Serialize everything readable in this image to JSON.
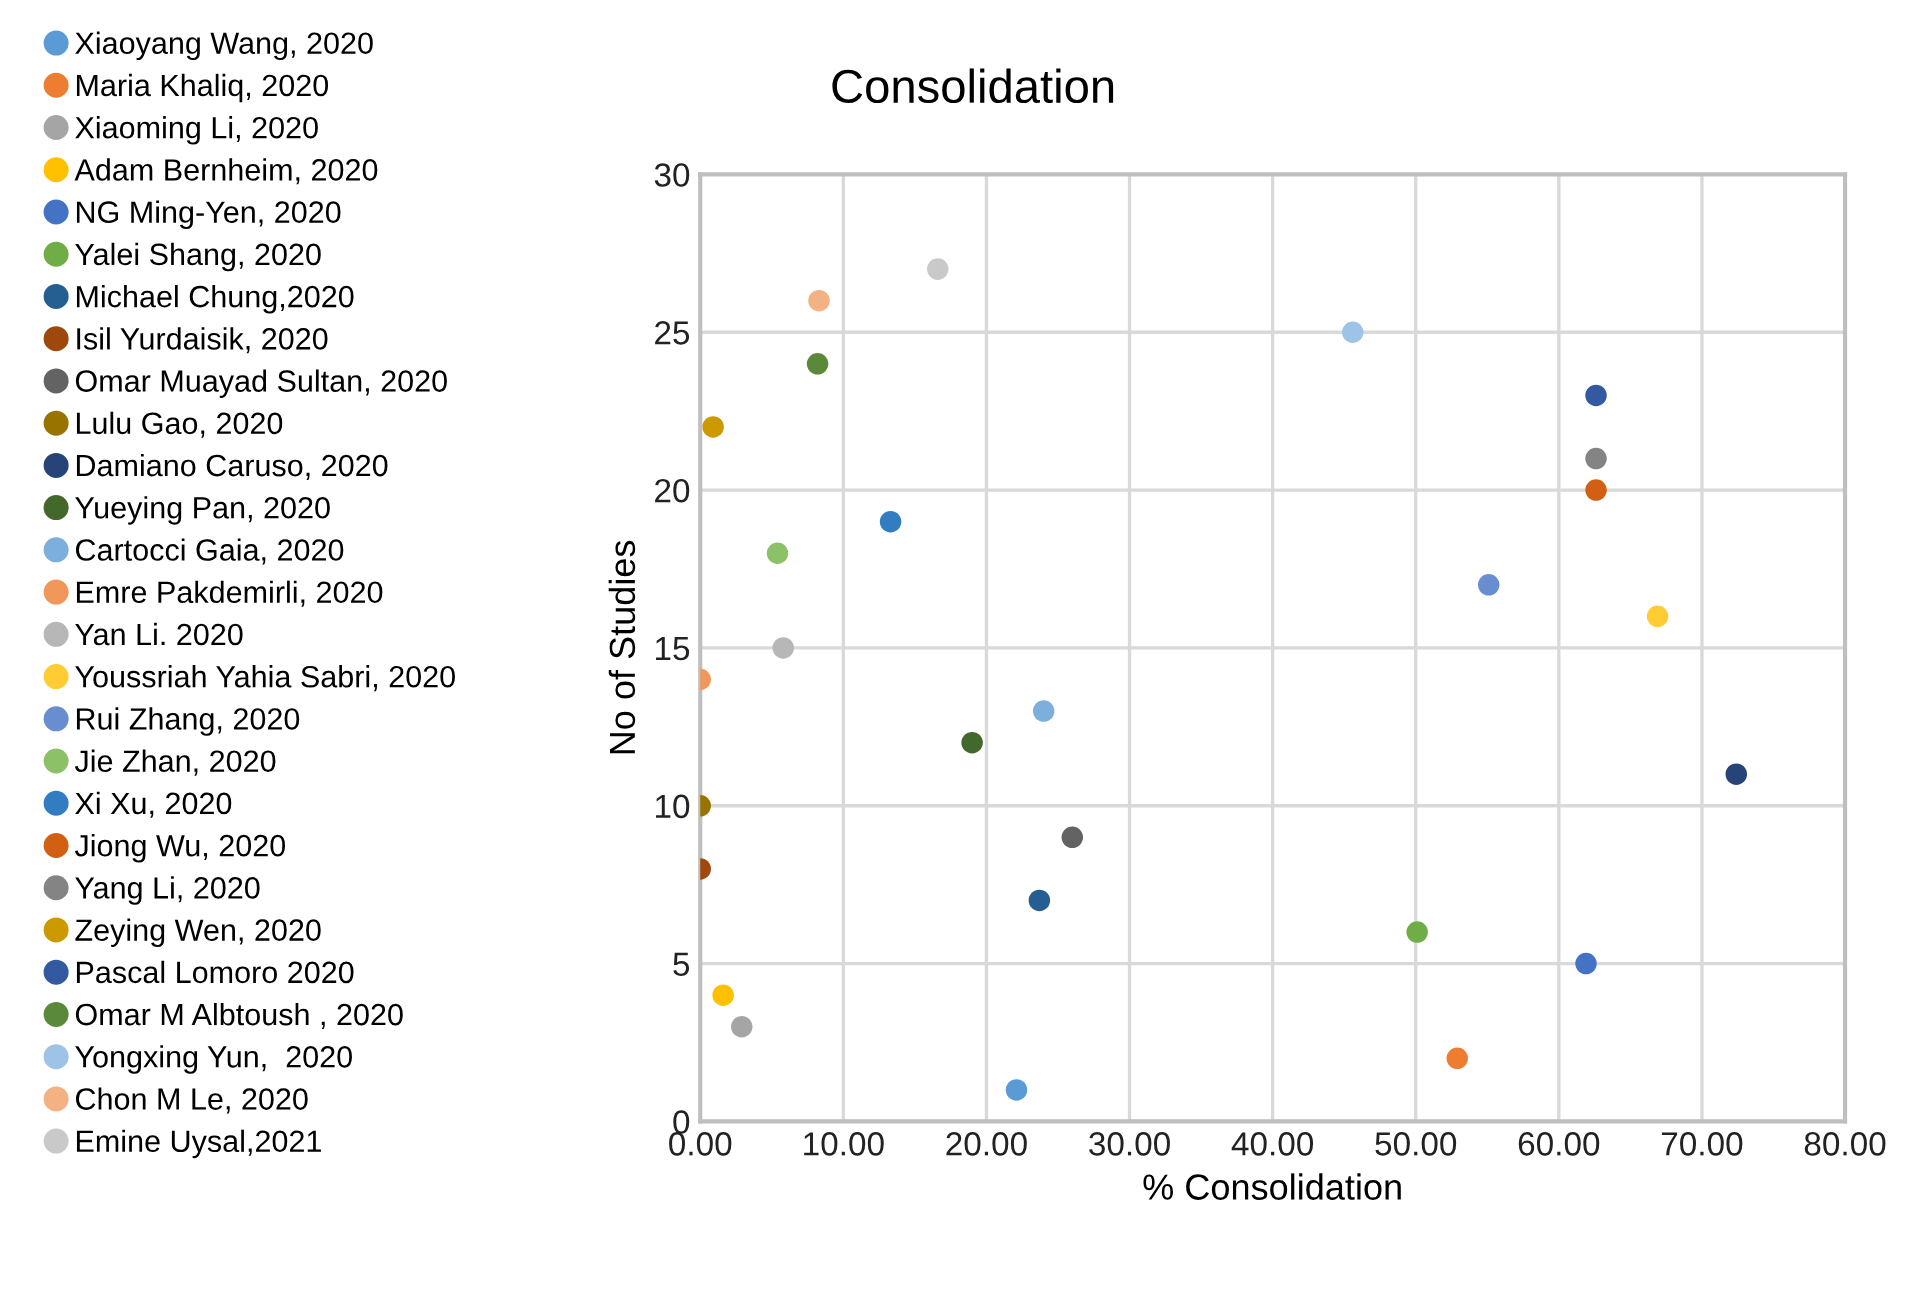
{
  "chart_data": {
    "type": "scatter",
    "title": "Consolidation",
    "xlabel": "% Consolidation",
    "ylabel": "No of Studies",
    "xlim": [
      0,
      80
    ],
    "ylim": [
      0,
      30
    ],
    "xticks": [
      {
        "value": 0,
        "label": "0.00"
      },
      {
        "value": 10,
        "label": "10.00"
      },
      {
        "value": 20,
        "label": "20.00"
      },
      {
        "value": 30,
        "label": "30.00"
      },
      {
        "value": 40,
        "label": "40.00"
      },
      {
        "value": 50,
        "label": "50.00"
      },
      {
        "value": 60,
        "label": "60.00"
      },
      {
        "value": 70,
        "label": "70.00"
      },
      {
        "value": 80,
        "label": "80.00"
      }
    ],
    "yticks": [
      0,
      5,
      10,
      15,
      20,
      25,
      30
    ],
    "grid": true,
    "legend": "left",
    "marker": "circle",
    "series": [
      {
        "name": "Xiaoyang Wang, 2020",
        "color": "#5b9bd5",
        "x": [
          22.1
        ],
        "values": [
          1
        ]
      },
      {
        "name": "Maria Khaliq, 2020",
        "color": "#ed7d31",
        "x": [
          52.9
        ],
        "values": [
          2
        ]
      },
      {
        "name": "Xiaoming Li, 2020",
        "color": "#a5a5a5",
        "x": [
          2.9
        ],
        "values": [
          3
        ]
      },
      {
        "name": "Adam Bernheim, 2020",
        "color": "#ffc000",
        "x": [
          1.6
        ],
        "values": [
          4
        ]
      },
      {
        "name": "NG Ming-Yen, 2020",
        "color": "#4472c4",
        "x": [
          61.9
        ],
        "values": [
          5
        ]
      },
      {
        "name": "Yalei Shang, 2020",
        "color": "#70ad47",
        "x": [
          50.1
        ],
        "values": [
          6
        ]
      },
      {
        "name": "Michael Chung,2020",
        "color": "#255e91",
        "x": [
          23.7
        ],
        "values": [
          7
        ]
      },
      {
        "name": "Isil Yurdaisik, 2020",
        "color": "#9e480e",
        "x": [
          0
        ],
        "values": [
          8
        ]
      },
      {
        "name": "Omar Muayad Sultan, 2020",
        "color": "#636363",
        "x": [
          26.0
        ],
        "values": [
          9
        ]
      },
      {
        "name": "Lulu Gao, 2020",
        "color": "#997300",
        "x": [
          0
        ],
        "values": [
          10
        ]
      },
      {
        "name": "Damiano Caruso, 2020",
        "color": "#264478",
        "x": [
          72.4
        ],
        "values": [
          11
        ]
      },
      {
        "name": "Yueying Pan, 2020",
        "color": "#43682b",
        "x": [
          19.0
        ],
        "values": [
          12
        ]
      },
      {
        "name": "Cartocci Gaia, 2020",
        "color": "#7cafdd",
        "x": [
          24.0
        ],
        "values": [
          13
        ]
      },
      {
        "name": "Emre Pakdemirli, 2020",
        "color": "#f1975a",
        "x": [
          0
        ],
        "values": [
          14
        ]
      },
      {
        "name": "Yan Li. 2020",
        "color": "#b7b7b7",
        "x": [
          5.8
        ],
        "values": [
          15
        ]
      },
      {
        "name": "Youssriah Yahia Sabri, 2020",
        "color": "#ffcd33",
        "x": [
          66.9
        ],
        "values": [
          16
        ]
      },
      {
        "name": "Rui Zhang, 2020",
        "color": "#698ed0",
        "x": [
          55.1
        ],
        "values": [
          17
        ]
      },
      {
        "name": "Jie Zhan, 2020",
        "color": "#8cc168",
        "x": [
          5.4
        ],
        "values": [
          18
        ]
      },
      {
        "name": "Xi Xu, 2020",
        "color": "#327dc2",
        "x": [
          13.3
        ],
        "values": [
          19
        ]
      },
      {
        "name": "Jiong Wu, 2020",
        "color": "#d26012",
        "x": [
          62.6
        ],
        "values": [
          20
        ]
      },
      {
        "name": "Yang Li, 2020",
        "color": "#848484",
        "x": [
          62.6
        ],
        "values": [
          21
        ]
      },
      {
        "name": "Zeying Wen, 2020",
        "color": "#cc9a00",
        "x": [
          0.9
        ],
        "values": [
          22
        ]
      },
      {
        "name": "Pascal Lomoro 2020",
        "color": "#335aa1",
        "x": [
          62.6
        ],
        "values": [
          23
        ]
      },
      {
        "name": "Omar M Albtoush , 2020",
        "color": "#5a8a39",
        "x": [
          8.2
        ],
        "values": [
          24
        ]
      },
      {
        "name": "Yongxing Yun,  2020",
        "color": "#9dc3e6",
        "x": [
          45.6
        ],
        "values": [
          25
        ]
      },
      {
        "name": "Chon M Le, 2020",
        "color": "#f4b183",
        "x": [
          8.3
        ],
        "values": [
          26
        ]
      },
      {
        "name": "Emine Uysal,2021",
        "color": "#c9c9c9",
        "x": [
          16.6
        ],
        "values": [
          27
        ]
      }
    ]
  }
}
